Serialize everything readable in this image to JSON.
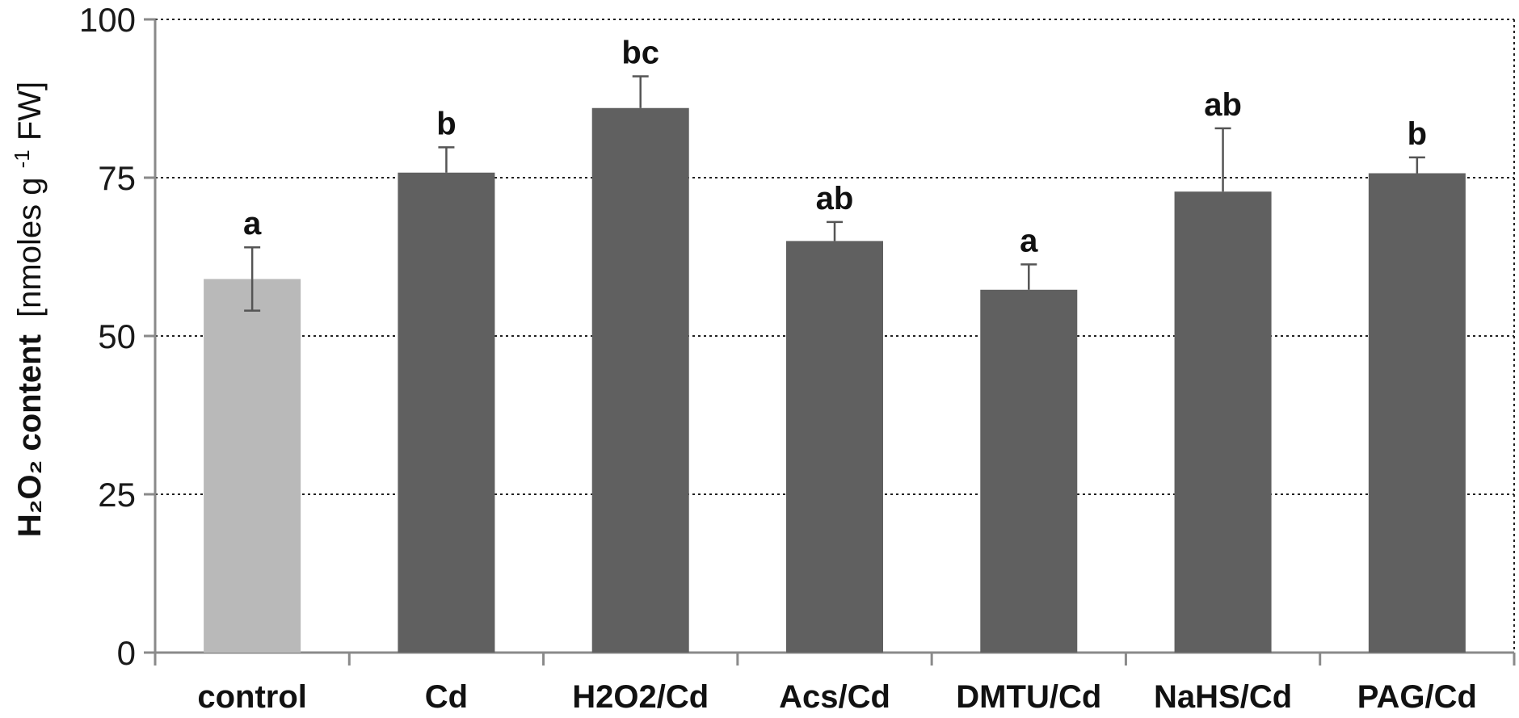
{
  "chart_data": {
    "type": "bar",
    "categories": [
      "control",
      "Cd",
      "H2O2/Cd",
      "Acs/Cd",
      "DMTU/Cd",
      "NaHS/Cd",
      "PAG/Cd"
    ],
    "values": [
      59,
      75.8,
      86,
      65,
      57.3,
      72.8,
      75.7
    ],
    "errors": [
      5,
      4,
      5,
      3,
      4,
      10,
      2.5
    ],
    "significance": [
      "a",
      "b",
      "bc",
      "ab",
      "a",
      "ab",
      "b"
    ],
    "bar_colors": [
      "#b9b9b9",
      "#606060",
      "#606060",
      "#606060",
      "#606060",
      "#606060",
      "#606060"
    ],
    "ylabel": {
      "bold_part": "H₂O₂ content",
      "unit_prefix": "[nmoles g",
      "unit_sup": "-1",
      "unit_suffix": " FW]"
    },
    "ylim": [
      0,
      100
    ],
    "yticks": [
      0,
      25,
      50,
      75,
      100
    ],
    "grid": "dotted horizontal",
    "legend": "none"
  }
}
